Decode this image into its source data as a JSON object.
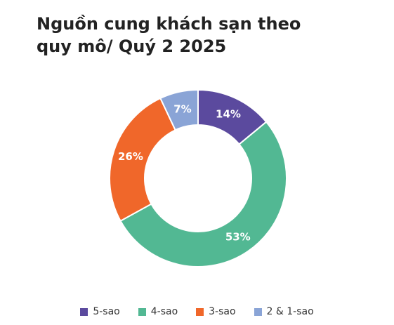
{
  "chart_data": {
    "type": "pie",
    "variant": "donut",
    "title_lines": [
      "Nguồn cung khách sạn theo",
      "quy mô/ Quý 2 2025"
    ],
    "categories": [
      "5-sao",
      "4-sao",
      "3-sao",
      "2 & 1-sao"
    ],
    "values": [
      14,
      53,
      26,
      7
    ],
    "labels": [
      "14%",
      "53%",
      "26%",
      "7%"
    ],
    "colors": [
      "#5B4A9E",
      "#52B893",
      "#F0672A",
      "#8AA4D6"
    ],
    "legend_position": "bottom"
  }
}
